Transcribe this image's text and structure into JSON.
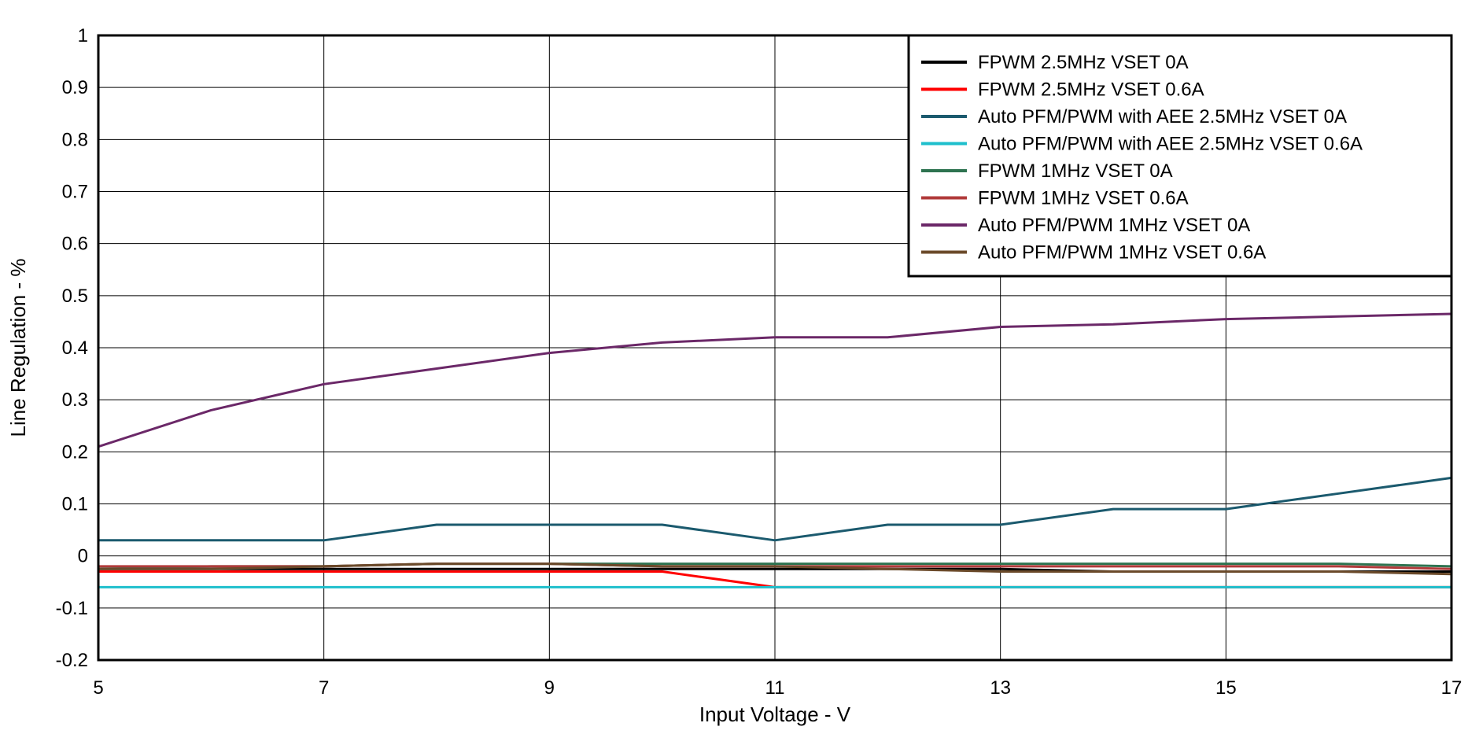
{
  "chart_data": {
    "type": "line",
    "title": "",
    "xlabel": "Input Voltage - V",
    "ylabel": "Line Regulation - %",
    "xlim": [
      5,
      17
    ],
    "ylim": [
      -0.2,
      1
    ],
    "xticks": [
      5,
      7,
      9,
      11,
      13,
      15,
      17
    ],
    "yticks": [
      -0.2,
      -0.1,
      0,
      0.1,
      0.2,
      0.3,
      0.4,
      0.5,
      0.6,
      0.7,
      0.8,
      0.9,
      1
    ],
    "xtick_labels": [
      "5",
      "7",
      "9",
      "11",
      "13",
      "15",
      "17"
    ],
    "ytick_labels": [
      "-0.2",
      "-0.1",
      "0",
      "0.1",
      "0.2",
      "0.3",
      "0.4",
      "0.5",
      "0.6",
      "0.7",
      "0.8",
      "0.9",
      "1"
    ],
    "grid": true,
    "legend_position": "top-right",
    "x": [
      5,
      6,
      7,
      8,
      9,
      10,
      11,
      12,
      13,
      14,
      15,
      16,
      17
    ],
    "series": [
      {
        "name": "FPWM 2.5MHz VSET 0A",
        "color": "#000000",
        "values": [
          -0.025,
          -0.025,
          -0.025,
          -0.025,
          -0.025,
          -0.025,
          -0.025,
          -0.025,
          -0.025,
          -0.03,
          -0.03,
          -0.03,
          -0.03
        ]
      },
      {
        "name": "FPWM 2.5MHz VSET 0.6A",
        "color": "#ff0000",
        "values": [
          -0.03,
          -0.03,
          -0.03,
          -0.03,
          -0.03,
          -0.03,
          -0.06,
          -0.06,
          -0.06,
          -0.06,
          -0.06,
          -0.06,
          -0.06
        ]
      },
      {
        "name": "Auto PFM/PWM with AEE 2.5MHz VSET 0A",
        "color": "#1b5a6e",
        "values": [
          0.03,
          0.03,
          0.03,
          0.06,
          0.06,
          0.06,
          0.03,
          0.06,
          0.06,
          0.09,
          0.09,
          0.12,
          0.15
        ]
      },
      {
        "name": "Auto PFM/PWM with AEE 2.5MHz VSET 0.6A",
        "color": "#1ebfcc",
        "values": [
          -0.06,
          -0.06,
          -0.06,
          -0.06,
          -0.06,
          -0.06,
          -0.06,
          -0.06,
          -0.06,
          -0.06,
          -0.06,
          -0.06,
          -0.06
        ]
      },
      {
        "name": "FPWM 1MHz VSET 0A",
        "color": "#2e7350",
        "values": [
          -0.025,
          -0.02,
          -0.02,
          -0.015,
          -0.015,
          -0.015,
          -0.015,
          -0.015,
          -0.015,
          -0.015,
          -0.015,
          -0.015,
          -0.02
        ]
      },
      {
        "name": "FPWM 1MHz VSET 0.6A",
        "color": "#b03a3a",
        "values": [
          -0.02,
          -0.02,
          -0.02,
          -0.015,
          -0.015,
          -0.02,
          -0.02,
          -0.02,
          -0.02,
          -0.02,
          -0.02,
          -0.02,
          -0.025
        ]
      },
      {
        "name": "Auto PFM/PWM 1MHz VSET 0A",
        "color": "#6b2868",
        "values": [
          0.21,
          0.28,
          0.33,
          0.36,
          0.39,
          0.41,
          0.42,
          0.42,
          0.44,
          0.445,
          0.455,
          0.46,
          0.465
        ]
      },
      {
        "name": "Auto PFM/PWM 1MHz VSET 0.6A",
        "color": "#6b4a2a",
        "values": [
          -0.025,
          -0.025,
          -0.02,
          -0.015,
          -0.015,
          -0.02,
          -0.02,
          -0.025,
          -0.03,
          -0.03,
          -0.03,
          -0.03,
          -0.035
        ]
      }
    ]
  }
}
